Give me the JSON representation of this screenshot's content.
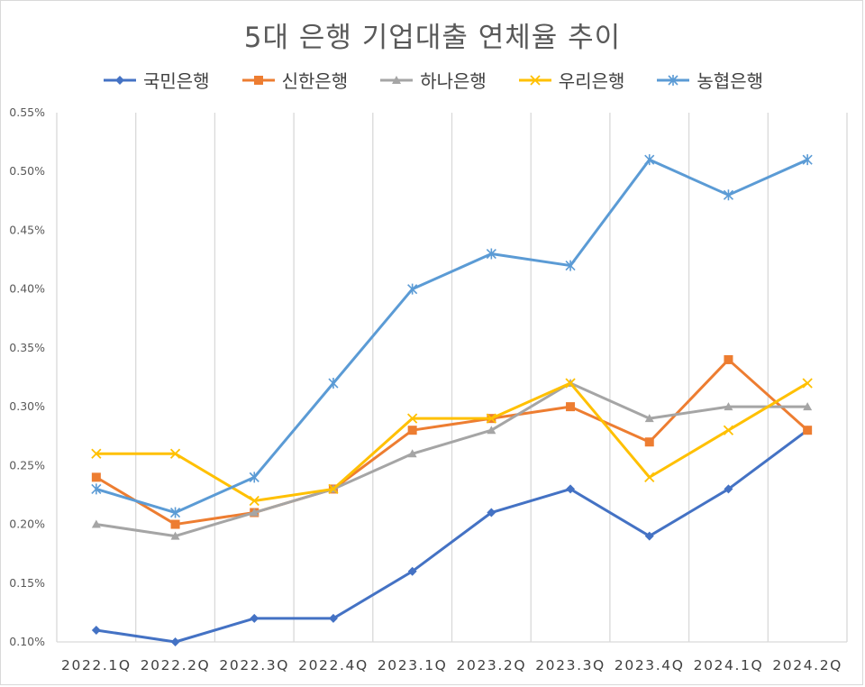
{
  "chart_data": {
    "type": "line",
    "title": "5대 은행 기업대출 연체율 추이",
    "xlabel": "",
    "ylabel": "",
    "categories": [
      "2022.1Q",
      "2022.2Q",
      "2022.3Q",
      "2022.4Q",
      "2023.1Q",
      "2023.2Q",
      "2023.3Q",
      "2023.4Q",
      "2024.1Q",
      "2024.2Q"
    ],
    "ylim": [
      0.1,
      0.55
    ],
    "yticks": [
      "0.10%",
      "0.15%",
      "0.20%",
      "0.25%",
      "0.30%",
      "0.35%",
      "0.40%",
      "0.45%",
      "0.50%",
      "0.55%"
    ],
    "grid": "vertical",
    "legend_position": "top",
    "series": [
      {
        "name": "국민은행",
        "color": "#4472c4",
        "marker": "diamond",
        "values": [
          0.11,
          0.1,
          0.12,
          0.12,
          0.16,
          0.21,
          0.23,
          0.19,
          0.23,
          0.28
        ]
      },
      {
        "name": "신한은행",
        "color": "#ed7d31",
        "marker": "square",
        "values": [
          0.24,
          0.2,
          0.21,
          0.23,
          0.28,
          0.29,
          0.3,
          0.27,
          0.34,
          0.28
        ]
      },
      {
        "name": "하나은행",
        "color": "#a5a5a5",
        "marker": "triangle",
        "values": [
          0.2,
          0.19,
          0.21,
          0.23,
          0.26,
          0.28,
          0.32,
          0.29,
          0.3,
          0.3
        ]
      },
      {
        "name": "우리은행",
        "color": "#ffc000",
        "marker": "x",
        "values": [
          0.26,
          0.26,
          0.22,
          0.23,
          0.29,
          0.29,
          0.32,
          0.24,
          0.28,
          0.32
        ]
      },
      {
        "name": "농협은행",
        "color": "#5b9bd5",
        "marker": "star",
        "values": [
          0.23,
          0.21,
          0.24,
          0.32,
          0.4,
          0.43,
          0.42,
          0.51,
          0.48,
          0.51
        ]
      }
    ]
  }
}
